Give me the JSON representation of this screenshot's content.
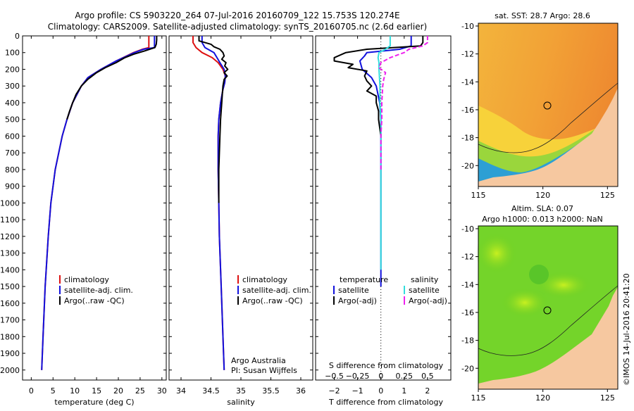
{
  "header": {
    "line1": "Argo profile: CS 5903220_264 07-Jul-2016 20160709_122 15.753S 120.274E",
    "line2": "Climatology: CARS2009. Satellite-adjusted climatology: synTS_20160705.nc (2.6d earlier)"
  },
  "colors": {
    "clim": "#dd1111",
    "sat": "#1111dd",
    "argo": "#000000",
    "sal_sat": "#33dddd",
    "sal_argo": "#ee22ee"
  },
  "depth_axis": {
    "ticks": [
      0,
      100,
      200,
      300,
      400,
      500,
      600,
      700,
      800,
      900,
      1000,
      1100,
      1200,
      1300,
      1400,
      1500,
      1600,
      1700,
      1800,
      1900,
      2000
    ],
    "labels": [
      "0",
      "100",
      "200",
      "300",
      "400",
      "500",
      "600",
      "700",
      "800",
      "900",
      "1000",
      "1100",
      "1200",
      "1300",
      "1400",
      "1500",
      "1600",
      "1700",
      "1800",
      "1900",
      "2000"
    ]
  },
  "legend_profiles": [
    "climatology",
    "satellite-adj. clim.",
    "Argo(..raw -QC)"
  ],
  "chart_data": [
    {
      "type": "line",
      "id": "temperature",
      "xlabel": "temperature (deg C)",
      "ylabel": "",
      "xlim": [
        -2,
        31
      ],
      "ylim": [
        0,
        2060
      ],
      "xticks": [
        0,
        5,
        10,
        15,
        20,
        25,
        30
      ],
      "xtick_labels": [
        "0",
        "5",
        "10",
        "15",
        "20",
        "25",
        "30"
      ],
      "series": [
        {
          "name": "climatology",
          "color": "#dd1111",
          "depth": [
            0,
            40,
            70,
            80,
            100,
            150,
            200,
            250,
            300,
            400,
            500,
            600,
            800,
            1000,
            1200,
            1500,
            1800,
            2000
          ],
          "values": [
            27,
            27,
            27,
            25.5,
            23.5,
            19.5,
            16,
            13,
            11.5,
            9.5,
            8.2,
            7.1,
            5.5,
            4.5,
            3.9,
            3.2,
            2.7,
            2.4
          ]
        },
        {
          "name": "satellite-adj. clim.",
          "color": "#1111dd",
          "depth": [
            0,
            40,
            70,
            80,
            100,
            150,
            200,
            250,
            300,
            400,
            500,
            600,
            800,
            1000,
            1200,
            1500,
            1800,
            2000
          ],
          "values": [
            28.3,
            28.3,
            28.3,
            25.8,
            23.7,
            19.5,
            16,
            13,
            11.5,
            9.5,
            8.2,
            7.1,
            5.5,
            4.5,
            3.9,
            3.2,
            2.7,
            2.4
          ]
        },
        {
          "name": "Argo(..raw -QC)",
          "color": "#000000",
          "depth": [
            0,
            25,
            50,
            70,
            90,
            110,
            130,
            160,
            190,
            220,
            260,
            300,
            350,
            400,
            450,
            500
          ],
          "values": [
            28.8,
            28.8,
            28.7,
            28.4,
            26,
            23.5,
            21.5,
            19.5,
            17,
            15,
            13,
            11.5,
            10.3,
            9.5,
            8.8,
            8.2
          ]
        }
      ]
    },
    {
      "type": "line",
      "id": "salinity",
      "xlabel": "salinity",
      "ylabel": "",
      "xlim": [
        33.8,
        36.2
      ],
      "ylim": [
        0,
        2060
      ],
      "xticks": [
        34,
        34.5,
        35,
        35.5,
        36
      ],
      "xtick_labels": [
        "34",
        "34.5",
        "35",
        "35.5",
        "36"
      ],
      "annotations": [
        "Argo Australia",
        "PI: Susan Wijffels"
      ],
      "series": [
        {
          "name": "climatology",
          "color": "#dd1111",
          "depth": [
            0,
            40,
            70,
            100,
            130,
            160,
            200,
            240,
            280,
            320,
            400,
            500,
            600,
            800,
            1000,
            1200,
            1500,
            1800,
            2000
          ],
          "values": [
            34.2,
            34.2,
            34.25,
            34.35,
            34.52,
            34.62,
            34.7,
            34.74,
            34.73,
            34.7,
            34.66,
            34.63,
            34.62,
            34.62,
            34.63,
            34.64,
            34.67,
            34.7,
            34.72
          ]
        },
        {
          "name": "satellite-adj. clim.",
          "color": "#1111dd",
          "depth": [
            0,
            40,
            70,
            100,
            130,
            160,
            200,
            240,
            280,
            320,
            400,
            500,
            600,
            800,
            1000,
            1200,
            1500,
            1800,
            2000
          ],
          "values": [
            34.35,
            34.35,
            34.4,
            34.55,
            34.6,
            34.65,
            34.72,
            34.74,
            34.73,
            34.7,
            34.66,
            34.63,
            34.62,
            34.62,
            34.63,
            34.64,
            34.67,
            34.7,
            34.72
          ]
        },
        {
          "name": "Argo(..raw -QC)",
          "color": "#000000",
          "depth": [
            0,
            30,
            50,
            65,
            80,
            100,
            120,
            140,
            160,
            180,
            200,
            220,
            240,
            260,
            300,
            350,
            400,
            500,
            600,
            700,
            800,
            900,
            1000
          ],
          "values": [
            34.3,
            34.3,
            34.5,
            34.55,
            34.65,
            34.7,
            34.72,
            34.68,
            34.75,
            34.73,
            34.78,
            34.72,
            34.77,
            34.72,
            34.7,
            34.69,
            34.68,
            34.66,
            34.65,
            34.64,
            34.63,
            34.63,
            34.63
          ]
        }
      ]
    },
    {
      "type": "line",
      "id": "differences",
      "xlabel": "T difference from climatology",
      "top_xlabel": "S difference from climatology",
      "xlim": [
        -2.8,
        3.0
      ],
      "ylim": [
        0,
        2060
      ],
      "xticks": [
        -2,
        -1,
        0,
        1,
        2
      ],
      "xtick_labels": [
        "−2",
        "−1",
        "0",
        "1",
        "2"
      ],
      "s_ticks": [
        -0.5,
        -0.25,
        0,
        0.25,
        0.5
      ],
      "s_tick_labels": [
        "−0.5",
        "−0.25",
        "0",
        "0.25",
        "0.5"
      ],
      "s_scale": 4,
      "legend_temperature_title": "temperature",
      "legend_salinity_title": "salinity",
      "legend_temperature": [
        "satellite",
        "Argo(-adj)"
      ],
      "legend_salinity": [
        "satellite",
        "Argo(-adj)"
      ],
      "series": [
        {
          "name": "T satellite",
          "color": "#1111dd",
          "depth": [
            0,
            60,
            80,
            100,
            120,
            150,
            200,
            250,
            300,
            400,
            500,
            1000,
            1500
          ],
          "values": [
            1.3,
            1.3,
            0.8,
            -0.6,
            -0.7,
            -0.9,
            -0.8,
            -0.4,
            -0.2,
            -0.05,
            0,
            0,
            0
          ]
        },
        {
          "name": "T Argo(-adj)",
          "color": "#000000",
          "depth": [
            0,
            40,
            60,
            80,
            100,
            130,
            150,
            170,
            190,
            210,
            240,
            270,
            300,
            330,
            360,
            400,
            450,
            500,
            600
          ],
          "values": [
            1.8,
            1.8,
            1.7,
            -0.6,
            -1.5,
            -2.0,
            -2.0,
            -1.2,
            -1.4,
            -0.6,
            -0.7,
            -0.6,
            -0.4,
            -0.6,
            -0.2,
            -0.2,
            -0.1,
            -0.1,
            0
          ]
        },
        {
          "name": "S satellite",
          "color": "#33dddd",
          "depth": [
            0,
            60,
            80,
            100,
            130,
            160,
            200,
            300,
            400,
            500,
            700,
            900,
            1100,
            1300,
            1400
          ],
          "values": [
            0.1,
            0.1,
            0.05,
            -0.02,
            -0.03,
            -0.02,
            -0.02,
            -0.01,
            -0.01,
            0,
            0,
            0,
            0,
            0,
            0
          ]
        },
        {
          "name": "S Argo(-adj)",
          "color": "#ee22ee",
          "depth": [
            0,
            40,
            60,
            80,
            100,
            130,
            160,
            190,
            220,
            260,
            300,
            400,
            500,
            600,
            700,
            800
          ],
          "values": [
            0.5,
            0.5,
            0.45,
            0.3,
            0.25,
            0.1,
            0,
            -0.02,
            0.05,
            0.03,
            0.02,
            0.01,
            0.01,
            0,
            0,
            0
          ]
        }
      ]
    }
  ],
  "map_sst": {
    "title": "sat. SST: 28.7 Argo: 28.6",
    "yticks": [
      "-10",
      "-12",
      "-14",
      "-16",
      "-18",
      "-20"
    ],
    "xticks": [
      "115",
      "120",
      "125"
    ]
  },
  "map_sla": {
    "title1": "Altim. SLA: 0.07",
    "title2": "Argo h1000: 0.013 h2000: NaN",
    "yticks": [
      "-10",
      "-12",
      "-14",
      "-16",
      "-18",
      "-20"
    ],
    "xticks": [
      "115",
      "120",
      "125"
    ]
  },
  "stamp": "©IMOS 14-Jul-2016 20:41:20"
}
